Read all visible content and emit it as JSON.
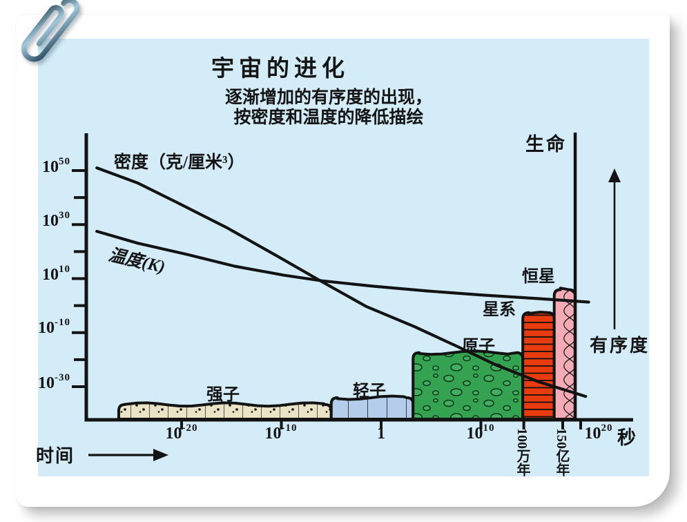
{
  "slide": {
    "title": "宇宙的进化",
    "subtitle_lines": [
      "逐渐增加的有序度的出现，",
      "按密度和温度的降低描绘"
    ]
  },
  "colors": {
    "panel_bg": "#d3ecf8",
    "card_bg": "#ffffff",
    "ink": "#141414",
    "hadron": "#eae3c6",
    "lepton": "#b4cdea",
    "atom": "#35a251",
    "atom_bubble": "#44ad5f",
    "galaxy": "#e83c10",
    "star": "#f5abb5",
    "paperclip": "#5b86a2"
  },
  "chart_data": {
    "type": "line",
    "title": "宇宙的进化",
    "subtitle": "逐渐增加的有序度的出现，按密度和温度的降低描绘",
    "grid": false,
    "x_axis": {
      "label": "时间",
      "unit": "秒",
      "scale": "log10(time, seconds)",
      "range_log10_s": [
        -30,
        22
      ],
      "ticks": [
        {
          "base": "10",
          "exp": "-20",
          "value_log10_s": -20
        },
        {
          "base": "10",
          "exp": "-10",
          "value_log10_s": -10
        },
        {
          "base": "1",
          "exp": null,
          "value_log10_s": 0
        },
        {
          "base": "10",
          "exp": "10",
          "value_log10_s": 10
        },
        {
          "base": "10",
          "exp": "20",
          "value_log10_s": 20
        }
      ],
      "time_marks": [
        {
          "label": "100万年",
          "value_log10_s": 14.3
        },
        {
          "label": "150亿年",
          "value_log10_s": 18.2
        }
      ]
    },
    "y_axis": {
      "scale": "log10(density g/cm3, temperature K)",
      "range_log10": [
        -42,
        64
      ],
      "ticks": [
        {
          "base": "10",
          "exp": "50",
          "value": 50
        },
        {
          "base": "10",
          "exp": "30",
          "value": 30
        },
        {
          "base": "10",
          "exp": "10",
          "value": 10
        },
        {
          "base": "10",
          "exp": "-10",
          "value": -10
        },
        {
          "base": "10",
          "exp": "-30",
          "value": -30
        }
      ],
      "minor_tick_values": [
        40,
        20,
        0,
        -20
      ]
    },
    "series": [
      {
        "name": "密度（克/厘米³）",
        "points": [
          [
            -28.5,
            51
          ],
          [
            -24.4,
            45.4
          ],
          [
            -20.2,
            37.7
          ],
          [
            -15.4,
            28.7
          ],
          [
            -10.5,
            18.5
          ],
          [
            -6,
            9
          ],
          [
            -1.5,
            -0.3
          ],
          [
            3.3,
            -7.7
          ],
          [
            7.5,
            -14.9
          ],
          [
            11.6,
            -22.1
          ],
          [
            15.8,
            -28.2
          ],
          [
            20.5,
            -33.6
          ]
        ]
      },
      {
        "name": "温度(K)",
        "points": [
          [
            -28.5,
            27.5
          ],
          [
            -24.4,
            23.1
          ],
          [
            -19.5,
            19
          ],
          [
            -14.7,
            14.6
          ],
          [
            -9.8,
            11.3
          ],
          [
            -6,
            9.2
          ],
          [
            -0.8,
            7.2
          ],
          [
            4.7,
            5.4
          ],
          [
            10.2,
            3.9
          ],
          [
            15.8,
            2.6
          ],
          [
            20.8,
            1.3
          ]
        ]
      }
    ],
    "eras": [
      {
        "label": "强子",
        "from_log10_s": -26.3,
        "to_log10_s": -5.0,
        "top_log10": -36.6,
        "color": "hadron",
        "pattern": "dots"
      },
      {
        "label": "轻子",
        "from_log10_s": -5.0,
        "to_log10_s": 3.2,
        "top_log10": -34.1,
        "color": "lepton",
        "pattern": "vlines"
      },
      {
        "label": "原子",
        "from_log10_s": 3.2,
        "to_log10_s": 14.2,
        "top_log10": -17.4,
        "color": "atom",
        "pattern": "bubbles"
      },
      {
        "label": "星系",
        "from_log10_s": 14.2,
        "to_log10_s": 17.35,
        "top_log10": -2.6,
        "color": "galaxy",
        "pattern": "hlines"
      },
      {
        "label": "恒星",
        "from_log10_s": 17.35,
        "to_log10_s": 19.45,
        "top_log10": 5.9,
        "color": "star",
        "pattern": "waves"
      }
    ],
    "life_marker": {
      "label": "生命",
      "value_log10_s": 19.45
    },
    "order_axis": {
      "label": "有序度",
      "direction": "up"
    }
  }
}
